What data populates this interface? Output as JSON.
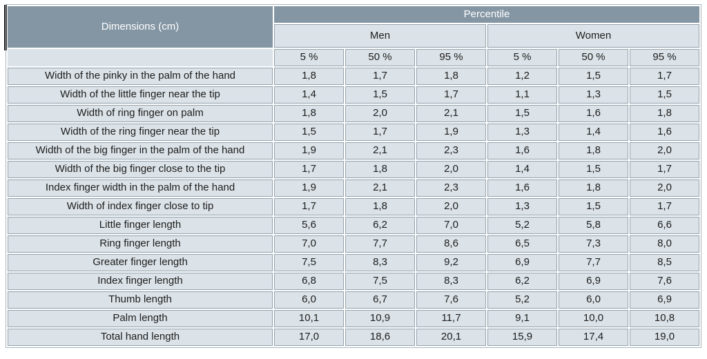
{
  "table": {
    "dimensions_header": "Dimensions (cm)",
    "percentile_header": "Percentile",
    "group_headers": [
      "Men",
      "Women"
    ],
    "subheaders": [
      "5 %",
      "50 %",
      "95 %",
      "5 %",
      "50 %",
      "95 %"
    ],
    "rows": [
      {
        "label": "Width of the pinky in the palm of the hand",
        "values": [
          "1,8",
          "1,7",
          "1,8",
          "1,2",
          "1,5",
          "1,7"
        ]
      },
      {
        "label": "Width of the little finger near the tip",
        "values": [
          "1,4",
          "1,5",
          "1,7",
          "1,1",
          "1,3",
          "1,5"
        ]
      },
      {
        "label": "Width of ring finger on palm",
        "values": [
          "1,8",
          "2,0",
          "2,1",
          "1,5",
          "1,6",
          "1,8"
        ]
      },
      {
        "label": "Width of the ring finger near the tip",
        "values": [
          "1,5",
          "1,7",
          "1,9",
          "1,3",
          "1,4",
          "1,6"
        ]
      },
      {
        "label": "Width of the big finger in the palm of the hand",
        "values": [
          "1,9",
          "2,1",
          "2,3",
          "1,6",
          "1,8",
          "2,0"
        ]
      },
      {
        "label": "Width of the big finger close to the tip",
        "values": [
          "1,7",
          "1,8",
          "2,0",
          "1,4",
          "1,5",
          "1,7"
        ]
      },
      {
        "label": "Index finger width in the palm of the hand",
        "values": [
          "1,9",
          "2,1",
          "2,3",
          "1,6",
          "1,8",
          "2,0"
        ]
      },
      {
        "label": "Width of index finger close to tip",
        "values": [
          "1,7",
          "1,8",
          "2,0",
          "1,3",
          "1,5",
          "1,7"
        ]
      },
      {
        "label": "Little finger length",
        "values": [
          "5,6",
          "6,2",
          "7,0",
          "5,2",
          "5,8",
          "6,6"
        ]
      },
      {
        "label": "Ring finger length",
        "values": [
          "7,0",
          "7,7",
          "8,6",
          "6,5",
          "7,3",
          "8,0"
        ]
      },
      {
        "label": "Greater finger length",
        "values": [
          "7,5",
          "8,3",
          "9,2",
          "6,9",
          "7,7",
          "8,5"
        ]
      },
      {
        "label": "Index finger length",
        "values": [
          "6,8",
          "7,5",
          "8,3",
          "6,2",
          "6,9",
          "7,6"
        ]
      },
      {
        "label": "Thumb length",
        "values": [
          "6,0",
          "6,7",
          "7,6",
          "5,2",
          "6,0",
          "6,9"
        ]
      },
      {
        "label": "Palm length",
        "values": [
          "10,1",
          "10,9",
          "11,7",
          "9,1",
          "10,0",
          "10,8"
        ]
      },
      {
        "label": "Total hand length",
        "values": [
          "17,0",
          "18,6",
          "20,1",
          "15,9",
          "17,4",
          "19,0"
        ]
      }
    ]
  },
  "colors": {
    "header_bg": "#8496a4",
    "cell_bg": "#dbe2e8",
    "border": "#93a1ab",
    "text": "#1d1d1b",
    "header_text": "#ffffff",
    "accent_bar": "#1f1f1f"
  },
  "chart_data": {
    "type": "table",
    "title": "Dimensions (cm) by Percentile",
    "column_groups": [
      "Men",
      "Women"
    ],
    "columns": [
      "Dimensions (cm)",
      "Men 5 %",
      "Men 50 %",
      "Men 95 %",
      "Women 5 %",
      "Women 50 %",
      "Women 95 %"
    ],
    "rows": [
      [
        "Width of the pinky in the palm of the hand",
        1.8,
        1.7,
        1.8,
        1.2,
        1.5,
        1.7
      ],
      [
        "Width of the little finger near the tip",
        1.4,
        1.5,
        1.7,
        1.1,
        1.3,
        1.5
      ],
      [
        "Width of ring finger on palm",
        1.8,
        2.0,
        2.1,
        1.5,
        1.6,
        1.8
      ],
      [
        "Width of the ring finger near the tip",
        1.5,
        1.7,
        1.9,
        1.3,
        1.4,
        1.6
      ],
      [
        "Width of the big finger in the palm of the hand",
        1.9,
        2.1,
        2.3,
        1.6,
        1.8,
        2.0
      ],
      [
        "Width of the big finger close to the tip",
        1.7,
        1.8,
        2.0,
        1.4,
        1.5,
        1.7
      ],
      [
        "Index finger width in the palm of the hand",
        1.9,
        2.1,
        2.3,
        1.6,
        1.8,
        2.0
      ],
      [
        "Width of index finger close to tip",
        1.7,
        1.8,
        2.0,
        1.3,
        1.5,
        1.7
      ],
      [
        "Little finger length",
        5.6,
        6.2,
        7.0,
        5.2,
        5.8,
        6.6
      ],
      [
        "Ring finger length",
        7.0,
        7.7,
        8.6,
        6.5,
        7.3,
        8.0
      ],
      [
        "Greater finger length",
        7.5,
        8.3,
        9.2,
        6.9,
        7.7,
        8.5
      ],
      [
        "Index finger length",
        6.8,
        7.5,
        8.3,
        6.2,
        6.9,
        7.6
      ],
      [
        "Thumb length",
        6.0,
        6.7,
        7.6,
        5.2,
        6.0,
        6.9
      ],
      [
        "Palm length",
        10.1,
        10.9,
        11.7,
        9.1,
        10.0,
        10.8
      ],
      [
        "Total hand length",
        17.0,
        18.6,
        20.1,
        15.9,
        17.4,
        19.0
      ]
    ]
  }
}
